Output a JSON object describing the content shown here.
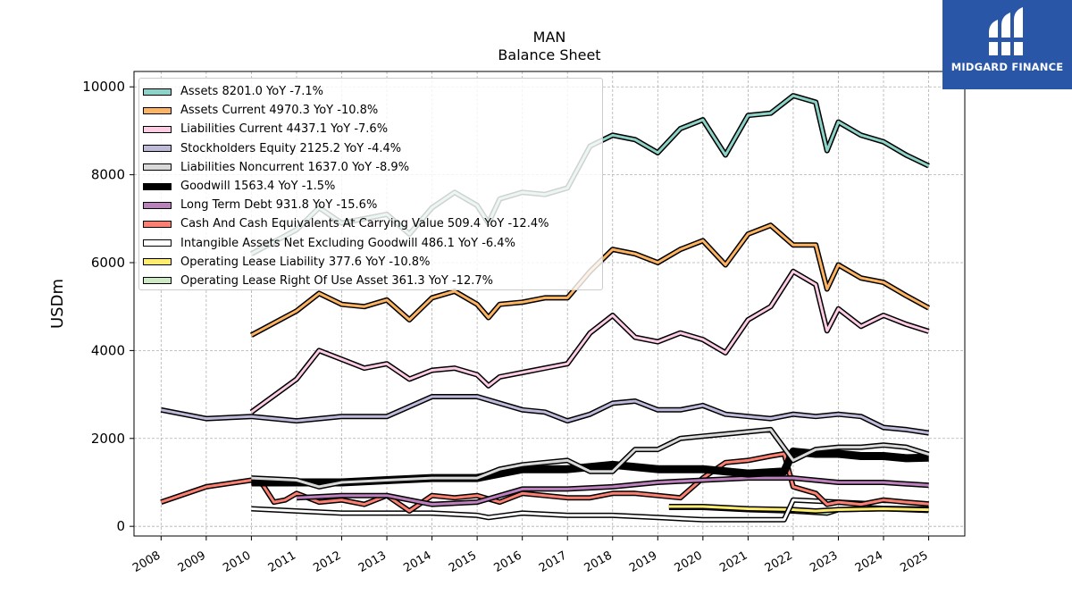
{
  "logo": {
    "text": "MIDGARD FINANCE"
  },
  "chart_data": {
    "type": "line",
    "title": "MAN",
    "subtitle": "Balance  Sheet",
    "ylabel": "USDm",
    "xlabel": "",
    "xlim": [
      2007.4,
      2025.8
    ],
    "ylim": [
      -220,
      10350
    ],
    "yticks": [
      0,
      2000,
      4000,
      6000,
      8000,
      10000
    ],
    "xticks": [
      "2008",
      "2009",
      "2010",
      "2011",
      "2012",
      "2013",
      "2014",
      "2015",
      "2016",
      "2017",
      "2018",
      "2019",
      "2020",
      "2021",
      "2022",
      "2023",
      "2024",
      "2025"
    ],
    "grid": true,
    "legend_position": "top-left",
    "series": [
      {
        "name": "Assets",
        "legend": "Assets  8201.0 YoY -7.1%",
        "color": "#8dd3c7",
        "x": [
          2010,
          2011,
          2011.5,
          2012,
          2012.5,
          2013,
          2013.5,
          2014,
          2014.5,
          2015,
          2015.25,
          2015.5,
          2016,
          2016.5,
          2017,
          2017.5,
          2018,
          2018.5,
          2019,
          2019.5,
          2020,
          2020.5,
          2021,
          2021.5,
          2022,
          2022.5,
          2022.75,
          2023,
          2023.5,
          2024,
          2024.5,
          2025
        ],
        "values": [
          6200,
          6750,
          7250,
          6900,
          7000,
          7100,
          6650,
          7250,
          7600,
          7300,
          6900,
          7450,
          7600,
          7550,
          7700,
          8650,
          8900,
          8800,
          8500,
          9050,
          9250,
          8450,
          9350,
          9400,
          9800,
          9650,
          8550,
          9200,
          8900,
          8750,
          8450,
          8201
        ]
      },
      {
        "name": "Assets Current",
        "legend": "Assets Current  4970.3 YoY -10.8%",
        "color": "#fdb462",
        "x": [
          2010,
          2011,
          2011.5,
          2012,
          2012.5,
          2013,
          2013.5,
          2014,
          2014.5,
          2015,
          2015.25,
          2015.5,
          2016,
          2016.5,
          2017,
          2017.5,
          2018,
          2018.5,
          2019,
          2019.5,
          2020,
          2020.5,
          2021,
          2021.5,
          2022,
          2022.5,
          2022.75,
          2023,
          2023.5,
          2024,
          2024.5,
          2025
        ],
        "values": [
          4350,
          4900,
          5300,
          5050,
          5000,
          5150,
          4700,
          5200,
          5350,
          5050,
          4750,
          5050,
          5100,
          5200,
          5200,
          5800,
          6300,
          6200,
          6000,
          6300,
          6500,
          5950,
          6650,
          6850,
          6400,
          6400,
          5400,
          5950,
          5650,
          5550,
          5250,
          4970
        ]
      },
      {
        "name": "Liabilities Current",
        "legend": "Liabilities Current  4437.1 YoY -7.6%",
        "color": "#fccde5",
        "x": [
          2010,
          2011,
          2011.5,
          2012,
          2012.5,
          2013,
          2013.5,
          2014,
          2014.5,
          2015,
          2015.25,
          2015.5,
          2016,
          2016.5,
          2017,
          2017.5,
          2018,
          2018.5,
          2019,
          2019.5,
          2020,
          2020.5,
          2021,
          2021.5,
          2022,
          2022.5,
          2022.75,
          2023,
          2023.5,
          2024,
          2024.5,
          2025
        ],
        "values": [
          2600,
          3350,
          4000,
          3800,
          3600,
          3700,
          3350,
          3550,
          3600,
          3450,
          3200,
          3400,
          3500,
          3600,
          3700,
          4400,
          4800,
          4300,
          4200,
          4400,
          4250,
          3950,
          4700,
          5000,
          5800,
          5500,
          4450,
          4950,
          4550,
          4800,
          4600,
          4437
        ]
      },
      {
        "name": "Stockholders Equity",
        "legend": "Stockholders Equity  2125.2 YoY -4.4%",
        "color": "#bebada",
        "x": [
          2008,
          2009,
          2010,
          2011,
          2012,
          2013,
          2014,
          2015,
          2016,
          2016.5,
          2017,
          2017.5,
          2018,
          2018.5,
          2019,
          2019.5,
          2020,
          2020.5,
          2021,
          2021.5,
          2022,
          2022.5,
          2023,
          2023.5,
          2024,
          2024.5,
          2025
        ],
        "values": [
          2650,
          2450,
          2500,
          2400,
          2500,
          2500,
          2950,
          2950,
          2650,
          2600,
          2400,
          2550,
          2800,
          2850,
          2650,
          2650,
          2750,
          2550,
          2500,
          2450,
          2550,
          2500,
          2550,
          2500,
          2250,
          2200,
          2125
        ]
      },
      {
        "name": "Liabilities Noncurrent",
        "legend": "Liabilities Noncurrent  1637.0 YoY -8.9%",
        "color": "#d9d9d9",
        "x": [
          2010,
          2011,
          2011.5,
          2012,
          2013,
          2014,
          2015,
          2015.5,
          2016,
          2016.5,
          2017,
          2017.5,
          2018,
          2018.5,
          2019,
          2019.5,
          2020,
          2020.5,
          2021,
          2021.5,
          2022,
          2022.5,
          2023,
          2023.5,
          2024,
          2024.5,
          2025
        ],
        "values": [
          1100,
          1050,
          900,
          1000,
          1050,
          1100,
          1100,
          1300,
          1400,
          1450,
          1500,
          1250,
          1250,
          1750,
          1750,
          2000,
          2050,
          2100,
          2150,
          2200,
          1500,
          1750,
          1800,
          1800,
          1850,
          1800,
          1637
        ]
      },
      {
        "name": "Goodwill",
        "legend": "Goodwill  1563.4 YoY -1.5%",
        "color": "#000000",
        "x": [
          2010,
          2011,
          2012,
          2013,
          2014,
          2015,
          2016,
          2017,
          2018,
          2019,
          2020,
          2021,
          2021.8,
          2022,
          2022.5,
          2023,
          2023.5,
          2024,
          2024.5,
          2025
        ],
        "values": [
          1000,
          1000,
          1000,
          1050,
          1100,
          1100,
          1300,
          1300,
          1400,
          1300,
          1300,
          1200,
          1250,
          1700,
          1650,
          1650,
          1600,
          1600,
          1550,
          1563
        ]
      },
      {
        "name": "Long Term Debt",
        "legend": "Long Term Debt  931.8 YoY -15.6%",
        "color": "#bc80bd",
        "x": [
          2011,
          2012,
          2013,
          2014,
          2015,
          2016,
          2017,
          2018,
          2019,
          2020,
          2021,
          2022,
          2023,
          2024,
          2025
        ],
        "values": [
          650,
          700,
          700,
          500,
          550,
          850,
          850,
          900,
          1000,
          1050,
          1100,
          1100,
          1000,
          1000,
          932
        ]
      },
      {
        "name": "Cash And Cash Equivalents At Carrying Value",
        "legend": "Cash And Cash Equivalents At Carrying Value  509.4 YoY -12.4%",
        "color": "#fb8072",
        "x": [
          2008,
          2009,
          2010,
          2010.25,
          2010.5,
          2010.75,
          2011,
          2011.5,
          2012,
          2012.5,
          2013,
          2013.5,
          2014,
          2014.5,
          2015,
          2015.5,
          2016,
          2016.5,
          2017,
          2017.5,
          2018,
          2018.5,
          2019,
          2019.5,
          2020,
          2020.5,
          2021,
          2021.5,
          2021.8,
          2022,
          2022.5,
          2022.75,
          2023,
          2023.5,
          2024,
          2024.5,
          2025
        ],
        "values": [
          550,
          900,
          1050,
          950,
          550,
          600,
          750,
          550,
          600,
          500,
          700,
          350,
          700,
          650,
          700,
          550,
          750,
          700,
          650,
          650,
          750,
          750,
          700,
          650,
          1100,
          1450,
          1500,
          1600,
          1650,
          900,
          750,
          500,
          550,
          500,
          600,
          550,
          509
        ]
      },
      {
        "name": "Intangible Assets Net Excluding Goodwill",
        "legend": "Intangible Assets Net Excluding Goodwill  486.1 YoY -6.4%",
        "color": "#ffffff",
        "x": [
          2010,
          2011,
          2012,
          2013,
          2014,
          2015,
          2015.25,
          2016,
          2017,
          2018,
          2019,
          2020,
          2021,
          2021.8,
          2022,
          2023,
          2024,
          2025
        ],
        "values": [
          400,
          350,
          300,
          300,
          300,
          250,
          200,
          300,
          250,
          250,
          200,
          150,
          150,
          150,
          600,
          550,
          500,
          486
        ]
      },
      {
        "name": "Operating Lease Liability",
        "legend": "Operating Lease Liability  377.6 YoY -10.8%",
        "color": "#ffed6f",
        "x": [
          2019.25,
          2020,
          2021,
          2022,
          2022.5,
          2023,
          2024,
          2025
        ],
        "values": [
          450,
          450,
          400,
          380,
          350,
          380,
          400,
          378
        ]
      },
      {
        "name": "Operating Lease Right Of Use Asset",
        "legend": "Operating Lease Right Of Use Asset  361.3 YoY -12.7%",
        "color": "#ccebc5",
        "x": [
          2019.25,
          2020,
          2021,
          2022,
          2022.75,
          2023,
          2024,
          2025
        ],
        "values": [
          430,
          430,
          380,
          350,
          300,
          380,
          400,
          361
        ]
      }
    ]
  }
}
